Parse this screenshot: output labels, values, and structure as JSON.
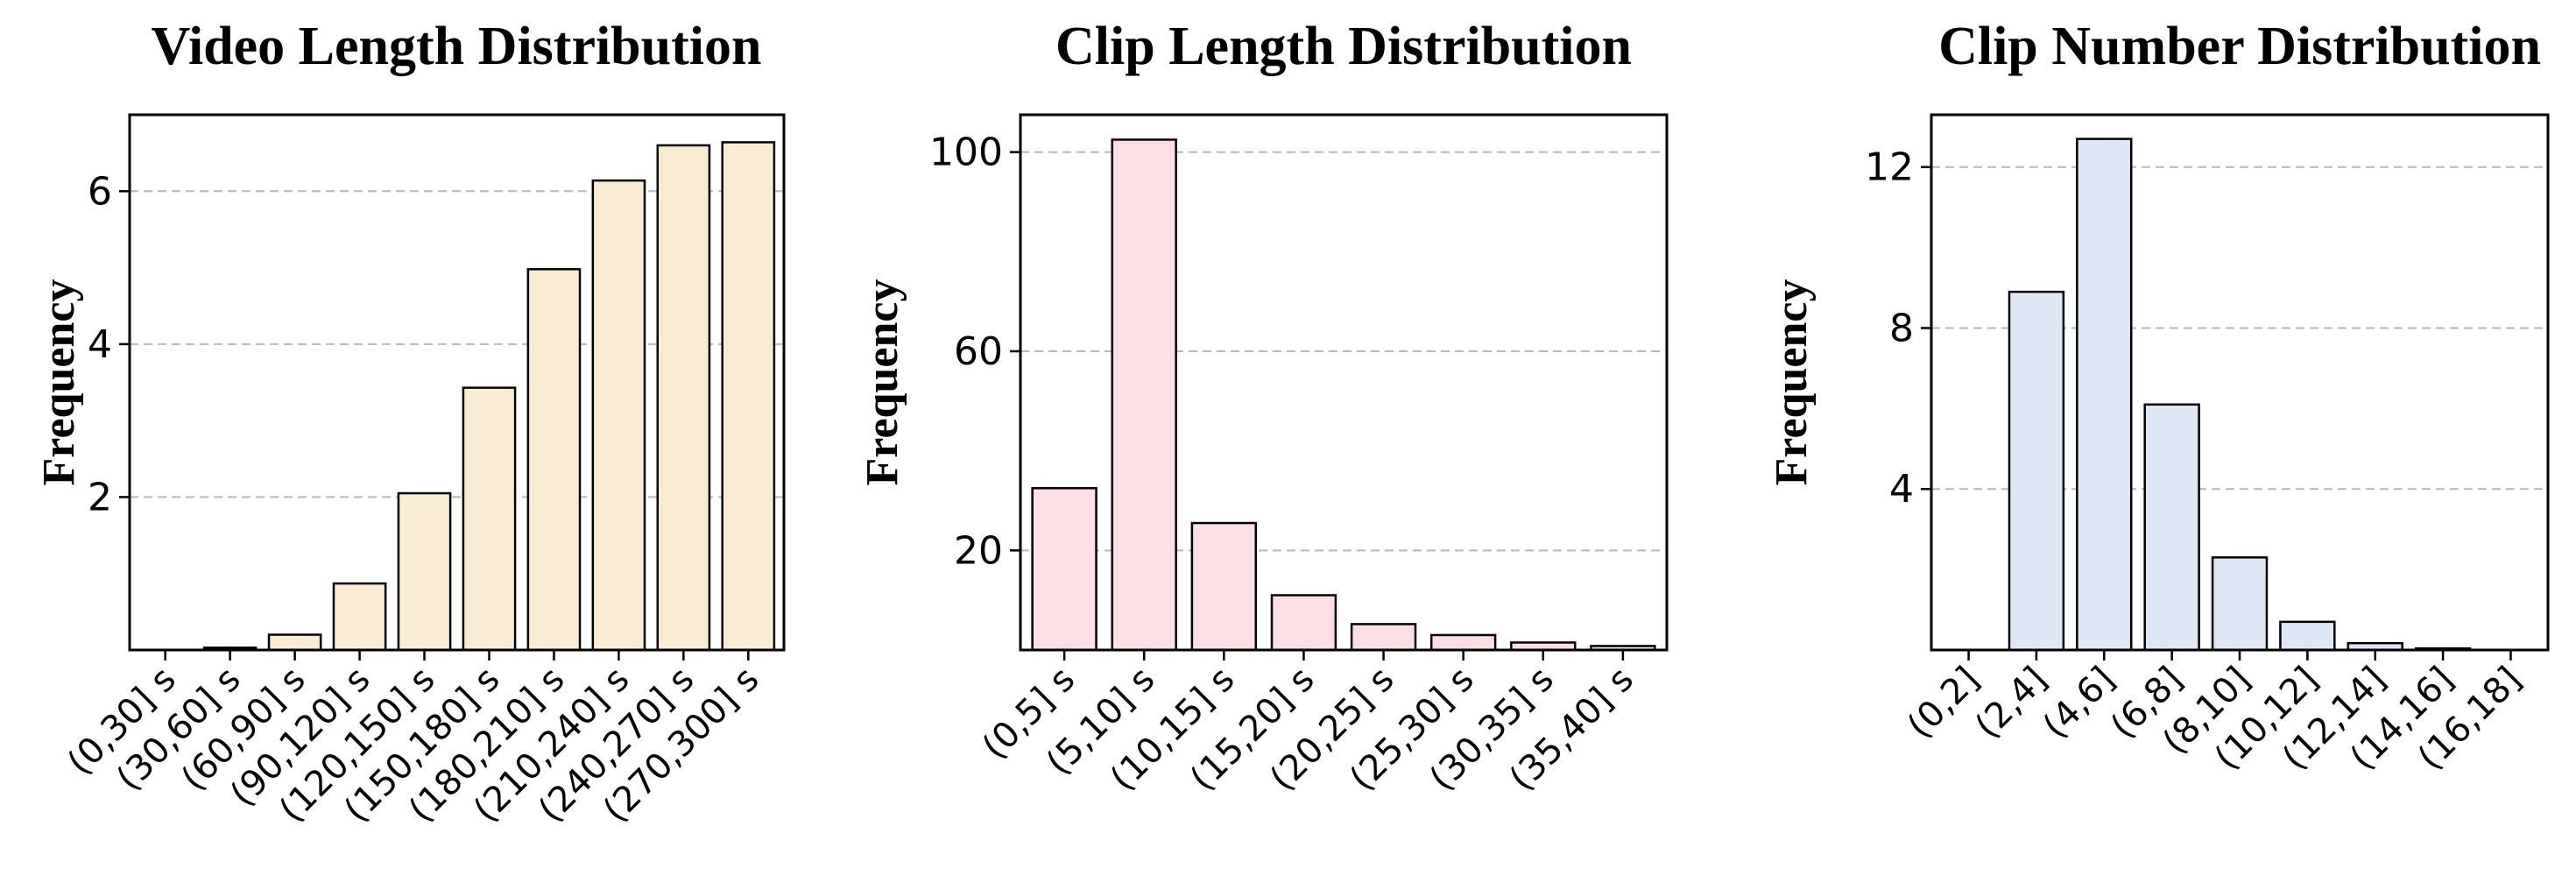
{
  "chart_data": [
    {
      "type": "bar",
      "title": "Video Length Distribution",
      "ylabel": "Frequency",
      "xlabel": "",
      "categories": [
        "(0,30] s",
        "(30,60] s",
        "(60,90] s",
        "(90,120] s",
        "(120,150] s",
        "(150,180] s",
        "(180,210] s",
        "(210,240] s",
        "(240,270] s",
        "(270,300] s"
      ],
      "values": [
        0.0,
        0.03,
        0.2,
        0.87,
        2.05,
        3.43,
        4.98,
        6.14,
        6.6,
        6.64
      ],
      "ylim": [
        0,
        7.0
      ],
      "yticks": [
        2,
        4,
        6
      ],
      "bar_color": "#faebd3",
      "grid": true
    },
    {
      "type": "bar",
      "title": "Clip Length Distribution",
      "ylabel": "Frequency",
      "xlabel": "",
      "categories": [
        "(0,5] s",
        "(5,10] s",
        "(10,15] s",
        "(15,20] s",
        "(20,25] s",
        "(25,30] s",
        "(30,35] s",
        "(35,40] s"
      ],
      "values": [
        32.5,
        102.5,
        25.5,
        11.0,
        5.2,
        3.0,
        1.5,
        0.8
      ],
      "ylim": [
        0,
        107.5
      ],
      "yticks": [
        20,
        60,
        100
      ],
      "bar_color": "#fcdde3",
      "grid": true
    },
    {
      "type": "bar",
      "title": "Clip Number Distribution",
      "ylabel": "Frequency",
      "xlabel": "",
      "categories": [
        "(0,2]",
        "(2,4]",
        "(4,6]",
        "(6,8]",
        "(8,10]",
        "(10,12]",
        "(12,14]",
        "(14,16]",
        "(16,18]"
      ],
      "values": [
        0.0,
        8.9,
        12.7,
        6.1,
        2.3,
        0.7,
        0.17,
        0.04,
        0.0
      ],
      "ylim": [
        0,
        13.3
      ],
      "yticks": [
        4,
        8,
        12
      ],
      "bar_color": "#dfe7f6",
      "grid": true
    }
  ]
}
